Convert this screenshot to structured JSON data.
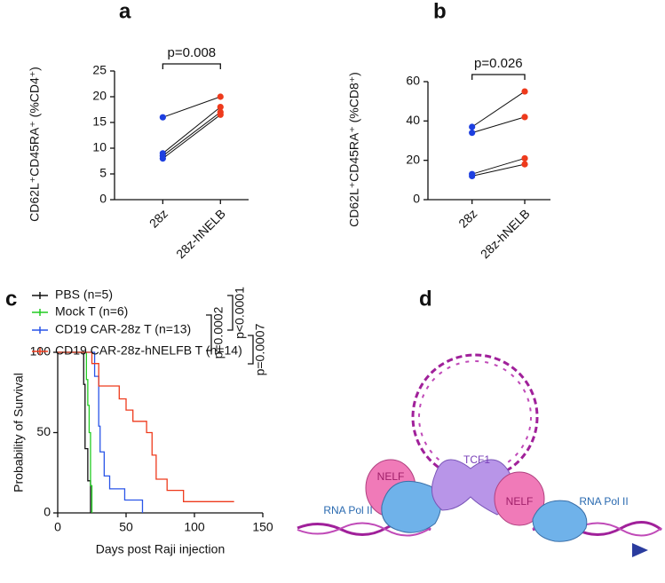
{
  "chart_data": [
    {
      "type": "pairs",
      "panel": "a",
      "ylabel": "CD62L⁺CD45RA⁺ (%CD4⁺)",
      "annotation": "p=0.008",
      "categories": [
        "28z",
        "28z-hNELB"
      ],
      "colors": [
        "#1d3fe0",
        "#ee3a1c"
      ],
      "pairs": [
        [
          16,
          20
        ],
        [
          9,
          18
        ],
        [
          8.5,
          17
        ],
        [
          8,
          16.5
        ]
      ],
      "ylim": [
        0,
        25
      ],
      "yticks": [
        0,
        5,
        10,
        15,
        20,
        25
      ]
    },
    {
      "type": "pairs",
      "panel": "b",
      "ylabel": "CD62L⁺CD45RA⁺ (%CD8⁺)",
      "annotation": "p=0.026",
      "categories": [
        "28z",
        "28z-hNELB"
      ],
      "colors": [
        "#1d3fe0",
        "#ee3a1c"
      ],
      "pairs": [
        [
          37,
          55
        ],
        [
          34,
          42
        ],
        [
          13,
          21
        ],
        [
          12,
          18
        ]
      ],
      "ylim": [
        0,
        60
      ],
      "yticks": [
        0,
        20,
        40,
        60
      ]
    },
    {
      "type": "survival",
      "panel": "c",
      "ylabel": "Probability of Survival",
      "xlabel": "Days post Raji injection",
      "annotations": [
        "p=0.0002",
        "p<0.0001",
        "p=0.0007"
      ],
      "series": [
        {
          "name": "PBS (n=5)",
          "color": "#111111",
          "x": [
            0,
            19,
            20,
            22,
            24
          ],
          "values": [
            100,
            80,
            40,
            20,
            0
          ]
        },
        {
          "name": "Mock T (n=6)",
          "color": "#22cc22",
          "x": [
            0,
            21,
            22,
            23,
            24,
            25
          ],
          "values": [
            100,
            83,
            67,
            50,
            17,
            0
          ]
        },
        {
          "name": "CD19 CAR-28z T (n=13)",
          "color": "#2a55e8",
          "x": [
            0,
            27,
            30,
            31,
            34,
            38,
            49,
            62
          ],
          "values": [
            100,
            85,
            54,
            38,
            23,
            15,
            8,
            0
          ]
        },
        {
          "name": "CD19 CAR-28z-hNELFB T (n=14)",
          "color": "#ee3a1c",
          "x": [
            0,
            25,
            30,
            45,
            50,
            55,
            65,
            69,
            72,
            80,
            92,
            129
          ],
          "values": [
            100,
            93,
            79,
            71,
            64,
            57,
            50,
            36,
            21,
            14,
            7,
            7
          ]
        }
      ],
      "xlim": [
        0,
        150
      ],
      "xticks": [
        0,
        50,
        100,
        150
      ],
      "ylim": [
        0,
        100
      ],
      "yticks": [
        0,
        50,
        100
      ]
    }
  ],
  "diagram": {
    "panel": "d",
    "labels": [
      "TCF1",
      "NELF",
      "NELF",
      "RNA Pol II",
      "RNA Pol II"
    ]
  }
}
